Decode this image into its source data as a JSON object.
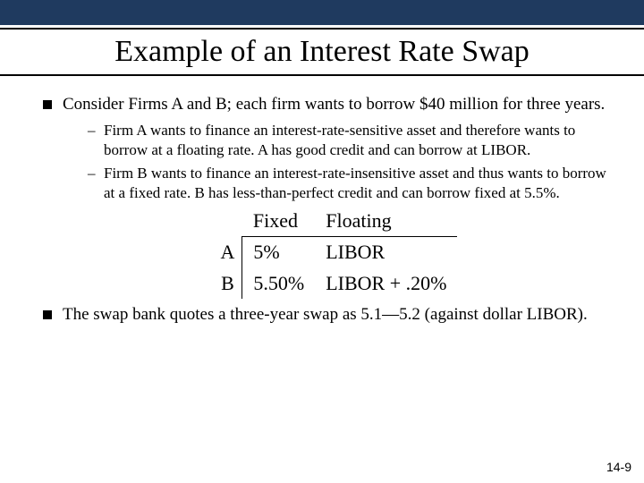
{
  "colors": {
    "topbar": "#1f3a5f",
    "background": "#ffffff",
    "text": "#000000",
    "rule": "#000000"
  },
  "title": "Example of an Interest Rate Swap",
  "bullets": {
    "b1": "Consider Firms A and B; each firm wants to borrow $40 million for three years.",
    "b1a": "Firm A wants to finance an interest-rate-sensitive asset and therefore wants to borrow at a floating rate. A has good credit and can borrow at LIBOR.",
    "b1b": "Firm B wants to finance an interest-rate-insensitive asset and thus wants to borrow at a fixed rate. B has less-than-perfect credit and can borrow fixed at 5.5%.",
    "b2": "The swap bank quotes a three-year swap as 5.1—5.2 (against dollar LIBOR)."
  },
  "table": {
    "type": "table",
    "columns": [
      "",
      "Fixed",
      "Floating"
    ],
    "rows": [
      {
        "label": "A",
        "fixed": "5%",
        "floating": "LIBOR"
      },
      {
        "label": "B",
        "fixed": "5.50%",
        "floating": "LIBOR + .20%"
      }
    ],
    "font_size": 22,
    "border_color": "#000000"
  },
  "page_number": "14-9"
}
